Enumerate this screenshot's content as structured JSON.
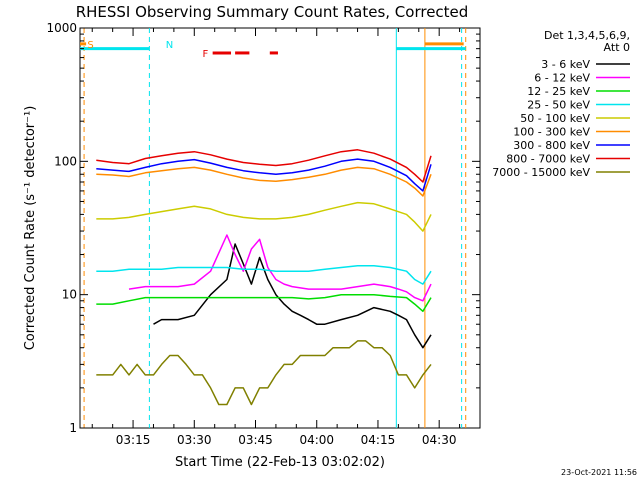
{
  "chart_data": {
    "type": "line",
    "title": "RHESSI Observing Summary Count Rates, Corrected",
    "xlabel": "Start Time (22-Feb-13 03:02:02)",
    "ylabel": "Corrected Count Rate (s⁻¹ detector⁻¹)",
    "y_scale": "log",
    "ylim": [
      1,
      1000
    ],
    "y_ticks": [
      1,
      10,
      100,
      1000
    ],
    "y_tick_labels": [
      "1",
      "10",
      "100",
      "1000"
    ],
    "xlim_minutes": [
      0,
      98
    ],
    "x_ticks": [
      {
        "t": 13,
        "label": "03:15"
      },
      {
        "t": 28,
        "label": "03:30"
      },
      {
        "t": 43,
        "label": "03:45"
      },
      {
        "t": 58,
        "label": "04:00"
      },
      {
        "t": 73,
        "label": "04:15"
      },
      {
        "t": 88,
        "label": "04:30"
      }
    ],
    "legend_title": [
      "Det 1,3,4,5,6,9,",
      "Att 0"
    ],
    "legend_placement": "right",
    "footer_date": "23-Oct-2021 11:56",
    "flag_labels": {
      "saa": "S",
      "night": "N",
      "flare": "F"
    },
    "flag_marks": [
      {
        "name": "saa",
        "t_start": 0.0,
        "t_end": 1.5,
        "level": 760,
        "color": "#ff8c00"
      },
      {
        "name": "night",
        "t_start": 0.0,
        "t_end": 17.0,
        "level": 700,
        "color": "#00e5ee"
      },
      {
        "name": "night",
        "t_start": 77.5,
        "t_end": 94.5,
        "level": 700,
        "color": "#00e5ee"
      },
      {
        "name": "saa",
        "t_start": 84.5,
        "t_end": 94.0,
        "level": 760,
        "color": "#ff8c00"
      },
      {
        "name": "flare",
        "t_start": 32.5,
        "t_end": 37.0,
        "level": 650,
        "color": "#e60000"
      },
      {
        "name": "flare",
        "t_start": 38.0,
        "t_end": 41.5,
        "level": 650,
        "color": "#e60000"
      },
      {
        "name": "flare",
        "t_start": 46.5,
        "t_end": 48.5,
        "level": 650,
        "color": "#e60000"
      }
    ],
    "vlines": [
      {
        "t": 1.0,
        "color": "#ff8c00",
        "dash": true
      },
      {
        "t": 17.0,
        "color": "#00e5ee",
        "dash": true
      },
      {
        "t": 77.5,
        "color": "#00e5ee",
        "dash": false
      },
      {
        "t": 84.5,
        "color": "#ff8c00",
        "dash": false
      },
      {
        "t": 93.5,
        "color": "#00e5ee",
        "dash": true
      },
      {
        "t": 94.5,
        "color": "#ff8c00",
        "dash": true
      }
    ],
    "series": [
      {
        "name": "3 - 6 keV",
        "color": "#000000",
        "x": [
          18,
          20,
          24,
          28,
          32,
          36,
          38,
          40,
          42,
          44,
          46,
          48,
          50,
          52,
          54,
          56,
          58,
          60,
          64,
          68,
          72,
          76,
          78,
          80,
          82,
          84,
          86
        ],
        "values": [
          6,
          6.5,
          6.5,
          7,
          10,
          13,
          24,
          17,
          12,
          19,
          13,
          10,
          8.5,
          7.5,
          7,
          6.5,
          6,
          6,
          6.5,
          7,
          8,
          7.5,
          7,
          6.5,
          5,
          4,
          5
        ]
      },
      {
        "name": "6 - 12 keV",
        "color": "#ff00ff",
        "x": [
          12,
          16,
          20,
          24,
          28,
          32,
          36,
          38,
          40,
          42,
          44,
          46,
          48,
          50,
          52,
          56,
          60,
          64,
          68,
          72,
          76,
          78,
          80,
          82,
          84,
          86
        ],
        "values": [
          11,
          11.5,
          11.5,
          11.5,
          12,
          15,
          28,
          20,
          15,
          22,
          26,
          16,
          13,
          12,
          11.5,
          11,
          11,
          11,
          11.5,
          12,
          11.5,
          11,
          10.5,
          9.5,
          9,
          12
        ]
      },
      {
        "name": "12 - 25 keV",
        "color": "#00dd00",
        "x": [
          4,
          8,
          12,
          16,
          20,
          24,
          28,
          32,
          36,
          40,
          44,
          48,
          52,
          56,
          60,
          64,
          68,
          72,
          76,
          80,
          82,
          84,
          86
        ],
        "values": [
          8.5,
          8.5,
          9,
          9.5,
          9.5,
          9.5,
          9.5,
          9.5,
          9.5,
          9.5,
          9.5,
          9.5,
          9.5,
          9.3,
          9.5,
          10,
          10,
          10,
          9.7,
          9.5,
          8.5,
          7.5,
          9.5
        ]
      },
      {
        "name": "25 - 50 keV",
        "color": "#00e5ee",
        "x": [
          4,
          8,
          12,
          16,
          20,
          24,
          28,
          32,
          36,
          40,
          44,
          48,
          52,
          56,
          60,
          64,
          68,
          72,
          76,
          80,
          82,
          84,
          86
        ],
        "values": [
          15,
          15,
          15.5,
          15.5,
          15.5,
          16,
          16,
          16,
          16,
          15.5,
          15.5,
          15,
          15,
          15,
          15.5,
          16,
          16.5,
          16.5,
          16,
          15,
          13,
          12,
          15
        ]
      },
      {
        "name": "50 - 100 keV",
        "color": "#cccc00",
        "x": [
          4,
          8,
          12,
          16,
          20,
          24,
          28,
          32,
          36,
          40,
          44,
          48,
          52,
          56,
          60,
          64,
          68,
          72,
          76,
          80,
          82,
          84,
          86
        ],
        "values": [
          37,
          37,
          38,
          40,
          42,
          44,
          46,
          44,
          40,
          38,
          37,
          37,
          38,
          40,
          43,
          46,
          49,
          48,
          44,
          40,
          35,
          30,
          40
        ]
      },
      {
        "name": "100 - 300 keV",
        "color": "#ff8c00",
        "x": [
          4,
          8,
          12,
          16,
          20,
          24,
          28,
          32,
          36,
          40,
          44,
          48,
          52,
          56,
          60,
          64,
          68,
          72,
          76,
          80,
          82,
          84,
          86
        ],
        "values": [
          80,
          79,
          77,
          82,
          85,
          88,
          90,
          86,
          80,
          75,
          72,
          71,
          73,
          76,
          80,
          86,
          90,
          88,
          80,
          70,
          63,
          55,
          80
        ]
      },
      {
        "name": "300 - 800 keV",
        "color": "#0000ff",
        "x": [
          4,
          8,
          12,
          16,
          20,
          24,
          28,
          32,
          36,
          40,
          44,
          48,
          52,
          56,
          60,
          64,
          68,
          72,
          76,
          80,
          82,
          84,
          86
        ],
        "values": [
          88,
          86,
          84,
          90,
          96,
          100,
          103,
          97,
          90,
          85,
          82,
          80,
          82,
          86,
          92,
          100,
          104,
          100,
          90,
          78,
          68,
          60,
          95
        ]
      },
      {
        "name": "800 - 7000 keV",
        "color": "#e60000",
        "x": [
          4,
          8,
          12,
          16,
          20,
          24,
          28,
          32,
          36,
          40,
          44,
          48,
          52,
          56,
          60,
          64,
          68,
          72,
          76,
          80,
          82,
          84,
          86
        ],
        "values": [
          102,
          98,
          96,
          105,
          110,
          115,
          118,
          112,
          104,
          98,
          95,
          93,
          96,
          102,
          110,
          118,
          122,
          115,
          104,
          90,
          80,
          70,
          110
        ]
      },
      {
        "name": "7000 - 15000 keV",
        "color": "#808000",
        "x": [
          4,
          6,
          8,
          10,
          12,
          14,
          16,
          18,
          20,
          22,
          24,
          26,
          28,
          30,
          32,
          34,
          36,
          38,
          40,
          42,
          44,
          46,
          48,
          50,
          52,
          54,
          56,
          58,
          60,
          62,
          64,
          66,
          68,
          70,
          72,
          74,
          76,
          78,
          80,
          82,
          84,
          86
        ],
        "values": [
          2.5,
          2.5,
          2.5,
          3,
          2.5,
          3,
          2.5,
          2.5,
          3,
          3.5,
          3.5,
          3,
          2.5,
          2.5,
          2,
          1.5,
          1.5,
          2,
          2,
          1.5,
          2,
          2,
          2.5,
          3,
          3,
          3.5,
          3.5,
          3.5,
          3.5,
          4,
          4,
          4,
          4.5,
          4.5,
          4,
          4,
          3.5,
          2.5,
          2.5,
          2,
          2.5,
          3
        ]
      }
    ]
  }
}
